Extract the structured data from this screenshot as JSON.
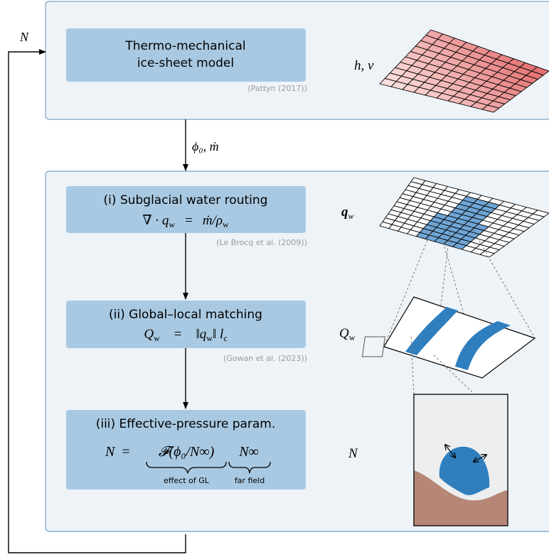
{
  "colors": {
    "panel_fill": "#eef3f8",
    "panel_border": "#7aa5c8",
    "box_fill": "#a9c9e2",
    "channel_blue": "#2f7fbf",
    "sediment_brown": "#b68776",
    "grid_red_dark": "#e26a6a",
    "grid_red_light": "#fde6e4"
  },
  "loop": {
    "label_N": "N",
    "label_coupling": "ϕ₀, ṁ"
  },
  "ice_sheet_model": {
    "title_line1": "Thermo-mechanical",
    "title_line2": "ice-sheet model",
    "citation": "(Pattyn (2017))",
    "output_symbol": "h, v",
    "icon": "red-gradient-grid-icon"
  },
  "steps": [
    {
      "title": "(i) Subglacial water routing",
      "equation_lhs": "∇ · q",
      "equation_lhs_sub": "w",
      "equation_eq": "=",
      "equation_rhs": "ṁ/ρ",
      "equation_rhs_sub": "w",
      "citation": "(Le Brocq et al. (2009))",
      "symbol": "q",
      "symbol_sub": "w",
      "icon": "blue-routing-grid-icon"
    },
    {
      "title": "(ii) Global–local matching",
      "equation_lhs": "Q",
      "equation_lhs_sub": "w",
      "equation_eq": "=",
      "equation_rhs": "‖q",
      "equation_rhs_sub": "w",
      "equation_rhs_tail": "‖ l",
      "equation_rhs_tail_sub": "c",
      "citation": "(Gowan et al. (2023))",
      "symbol": "Q",
      "symbol_sub": "w",
      "icon": "channel-patch-icon"
    },
    {
      "title": "(iii) Effective-pressure param.",
      "equation_lhs": "N",
      "equation_eq": "=",
      "term1": "𝓕(ϕ₀/N∞)",
      "term2": "N∞",
      "brace1_label": "effect of GL",
      "brace2_label": "far field",
      "symbol": "N",
      "icon": "cavity-cross-section-icon"
    }
  ]
}
